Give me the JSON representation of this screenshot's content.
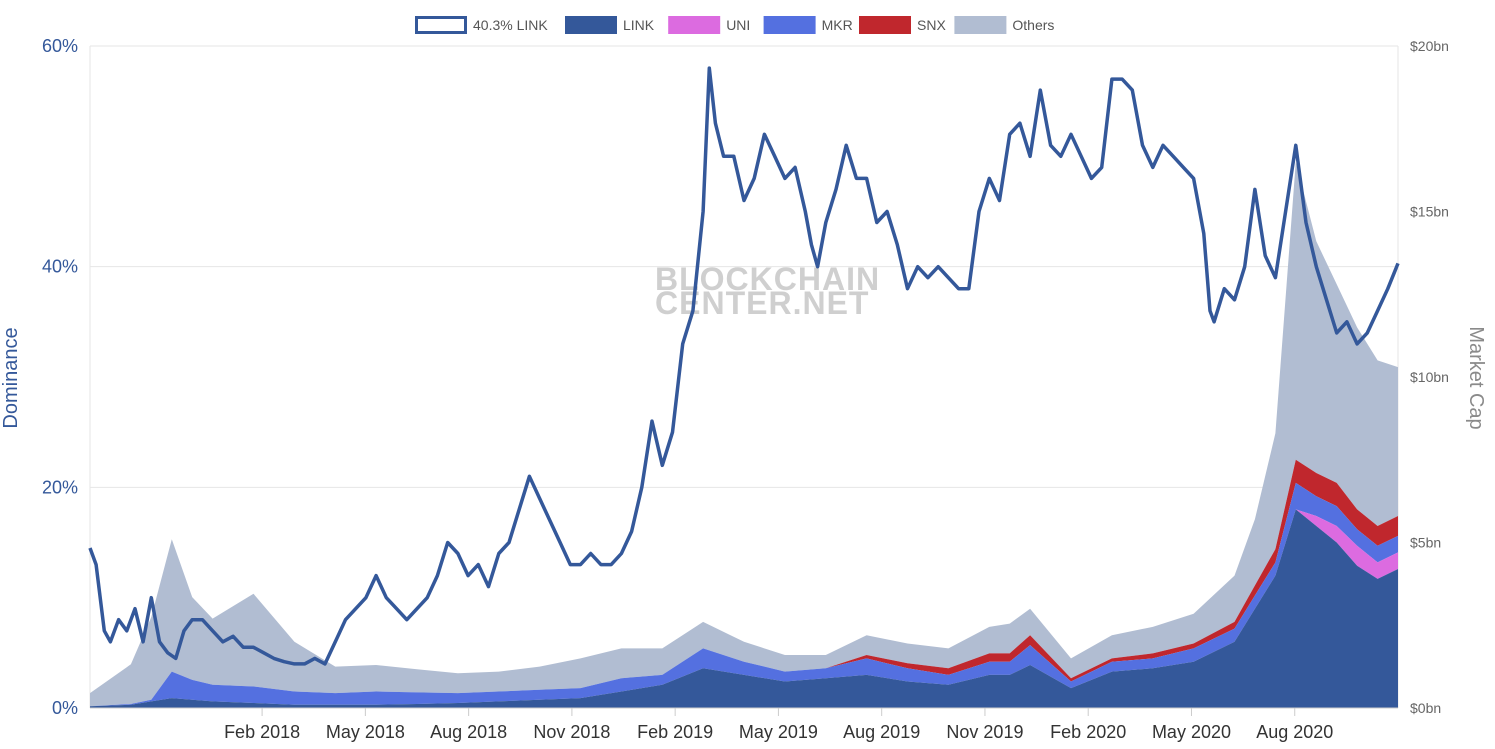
{
  "chart_data": {
    "type": "area",
    "watermark": [
      "BLOCKCHAIN",
      "CENTER.NET"
    ],
    "y_left": {
      "label": "Dominance",
      "ticks": [
        "0%",
        "20%",
        "40%",
        "60%"
      ],
      "range": [
        0,
        60
      ]
    },
    "y_right": {
      "label": "Market Cap",
      "ticks": [
        "$0bn",
        "$5bn",
        "$10bn",
        "$15bn",
        "$20bn"
      ],
      "range": [
        0,
        20
      ]
    },
    "x_ticks": [
      "Feb 2018",
      "May 2018",
      "Aug 2018",
      "Nov 2018",
      "Feb 2019",
      "May 2019",
      "Aug 2019",
      "Nov 2019",
      "Feb 2020",
      "May 2020",
      "Aug 2020"
    ],
    "x_range_months": [
      "2017-10",
      "2020-11"
    ],
    "legend": [
      {
        "name": "40.3% LINK",
        "color": "#34589a",
        "style": "outline"
      },
      {
        "name": "LINK",
        "color": "#34589a",
        "style": "fill"
      },
      {
        "name": "UNI",
        "color": "#dc6be0",
        "style": "fill"
      },
      {
        "name": "MKR",
        "color": "#5470e0",
        "style": "fill"
      },
      {
        "name": "SNX",
        "color": "#c0272d",
        "style": "fill"
      },
      {
        "name": "Others",
        "color": "#b1bdd2",
        "style": "fill"
      }
    ],
    "x_month_index": [
      0,
      1,
      2,
      3,
      4,
      5,
      6,
      7,
      8,
      9,
      10,
      11,
      12,
      13,
      14,
      15,
      16,
      17,
      18,
      19,
      20,
      21,
      22,
      23,
      24,
      25,
      26,
      27,
      28,
      29,
      30,
      31,
      32,
      33,
      34,
      35,
      36,
      37,
      38
    ],
    "dominance_line": {
      "name": "40.3% LINK",
      "points": [
        [
          0,
          14.5
        ],
        [
          0.3,
          13
        ],
        [
          0.7,
          7
        ],
        [
          1,
          6
        ],
        [
          1.4,
          8
        ],
        [
          1.8,
          7
        ],
        [
          2.2,
          9
        ],
        [
          2.6,
          6
        ],
        [
          3,
          10
        ],
        [
          3.4,
          6
        ],
        [
          3.8,
          5
        ],
        [
          4.2,
          4.5
        ],
        [
          4.6,
          7
        ],
        [
          5,
          8
        ],
        [
          5.5,
          8
        ],
        [
          6,
          7
        ],
        [
          6.5,
          6
        ],
        [
          7,
          6.5
        ],
        [
          7.5,
          5.5
        ],
        [
          8,
          5.5
        ],
        [
          8.5,
          5
        ],
        [
          9,
          4.5
        ],
        [
          9.5,
          4.2
        ],
        [
          10,
          4
        ],
        [
          10.5,
          4
        ],
        [
          11,
          4.5
        ],
        [
          11.5,
          4
        ],
        [
          12,
          6
        ],
        [
          12.5,
          8
        ],
        [
          13,
          9
        ],
        [
          13.5,
          10
        ],
        [
          14,
          12
        ],
        [
          14.5,
          10
        ],
        [
          15,
          9
        ],
        [
          15.5,
          8
        ],
        [
          16,
          9
        ],
        [
          16.5,
          10
        ],
        [
          17,
          12
        ],
        [
          17.5,
          15
        ],
        [
          18,
          14
        ],
        [
          18.5,
          12
        ],
        [
          19,
          13
        ],
        [
          19.5,
          11
        ],
        [
          20,
          14
        ],
        [
          20.5,
          15
        ],
        [
          21,
          18
        ],
        [
          21.5,
          21
        ],
        [
          22,
          19
        ],
        [
          22.5,
          17
        ],
        [
          23,
          15
        ],
        [
          23.5,
          13
        ],
        [
          24,
          13
        ],
        [
          24.5,
          14
        ],
        [
          25,
          13
        ],
        [
          25.5,
          13
        ],
        [
          26,
          14
        ],
        [
          26.5,
          16
        ],
        [
          27,
          20
        ],
        [
          27.5,
          26
        ],
        [
          28,
          22
        ],
        [
          28.5,
          25
        ],
        [
          29,
          33
        ],
        [
          29.5,
          36
        ],
        [
          30,
          45
        ],
        [
          30.3,
          58
        ],
        [
          30.6,
          53
        ],
        [
          31,
          50
        ],
        [
          31.5,
          50
        ],
        [
          32,
          46
        ],
        [
          32.5,
          48
        ],
        [
          33,
          52
        ],
        [
          33.5,
          50
        ],
        [
          34,
          48
        ],
        [
          34.5,
          49
        ],
        [
          35,
          45
        ],
        [
          35.3,
          42
        ],
        [
          35.6,
          40
        ],
        [
          36,
          44
        ],
        [
          36.5,
          47
        ],
        [
          37,
          51
        ],
        [
          37.5,
          48
        ],
        [
          38,
          48
        ],
        [
          38.5,
          44
        ],
        [
          39,
          45
        ],
        [
          39.5,
          42
        ],
        [
          40,
          38
        ],
        [
          40.5,
          40
        ],
        [
          41,
          39
        ],
        [
          41.5,
          40
        ],
        [
          42,
          39
        ],
        [
          42.5,
          38
        ],
        [
          43,
          38
        ],
        [
          43.5,
          45
        ],
        [
          44,
          48
        ],
        [
          44.5,
          46
        ],
        [
          45,
          52
        ],
        [
          45.5,
          53
        ],
        [
          46,
          50
        ],
        [
          46.5,
          56
        ],
        [
          47,
          51
        ],
        [
          47.5,
          50
        ],
        [
          48,
          52
        ],
        [
          48.5,
          50
        ],
        [
          49,
          48
        ],
        [
          49.5,
          49
        ],
        [
          50,
          57
        ],
        [
          50.5,
          57
        ],
        [
          51,
          56
        ],
        [
          51.5,
          51
        ],
        [
          52,
          49
        ],
        [
          52.5,
          51
        ],
        [
          53,
          50
        ],
        [
          53.5,
          49
        ],
        [
          54,
          48
        ],
        [
          54.5,
          43
        ],
        [
          54.8,
          36
        ],
        [
          55,
          35
        ],
        [
          55.5,
          38
        ],
        [
          56,
          37
        ],
        [
          56.5,
          40
        ],
        [
          57,
          47
        ],
        [
          57.5,
          41
        ],
        [
          58,
          39
        ],
        [
          58.5,
          45
        ],
        [
          59,
          51
        ],
        [
          59.5,
          44
        ],
        [
          60,
          40
        ],
        [
          60.5,
          37
        ],
        [
          61,
          34
        ],
        [
          61.5,
          35
        ],
        [
          62,
          33
        ],
        [
          62.5,
          34
        ],
        [
          63,
          36
        ],
        [
          63.5,
          38
        ],
        [
          64,
          40.3
        ]
      ]
    },
    "market_cap_bn": {
      "note": "stacked areas in $bn, sampled by month index",
      "x": [
        0,
        2,
        3,
        4,
        5,
        6,
        8,
        10,
        12,
        14,
        16,
        18,
        20,
        22,
        24,
        26,
        28,
        30,
        32,
        34,
        36,
        38,
        40,
        42,
        44,
        45,
        46,
        48,
        50,
        52,
        54,
        56,
        57,
        58,
        59,
        60,
        61,
        62,
        63,
        64
      ],
      "LINK": [
        0.05,
        0.1,
        0.2,
        0.3,
        0.25,
        0.2,
        0.15,
        0.1,
        0.1,
        0.1,
        0.12,
        0.15,
        0.2,
        0.25,
        0.3,
        0.5,
        0.7,
        1.2,
        1.0,
        0.8,
        0.9,
        1.0,
        0.8,
        0.7,
        1.0,
        1.0,
        1.3,
        0.6,
        1.1,
        1.2,
        1.4,
        2.0,
        3.0,
        4.0,
        6.0,
        5.5,
        5.0,
        4.3,
        3.9,
        4.2
      ],
      "UNI": [
        0,
        0,
        0,
        0,
        0,
        0,
        0,
        0,
        0,
        0,
        0,
        0,
        0,
        0,
        0,
        0,
        0,
        0,
        0,
        0,
        0,
        0,
        0,
        0,
        0,
        0,
        0,
        0,
        0,
        0,
        0,
        0,
        0,
        0,
        0,
        0.3,
        0.5,
        0.6,
        0.5,
        0.5
      ],
      "MKR": [
        0,
        0.02,
        0.05,
        0.8,
        0.6,
        0.5,
        0.5,
        0.4,
        0.35,
        0.4,
        0.35,
        0.3,
        0.3,
        0.3,
        0.3,
        0.4,
        0.3,
        0.6,
        0.4,
        0.3,
        0.3,
        0.5,
        0.4,
        0.3,
        0.4,
        0.4,
        0.6,
        0.2,
        0.3,
        0.3,
        0.4,
        0.4,
        0.4,
        0.4,
        0.8,
        0.6,
        0.6,
        0.5,
        0.5,
        0.5
      ],
      "SNX": [
        0,
        0,
        0,
        0,
        0,
        0,
        0,
        0,
        0,
        0,
        0,
        0,
        0,
        0,
        0,
        0,
        0,
        0,
        0,
        0,
        0,
        0.1,
        0.15,
        0.2,
        0.25,
        0.25,
        0.3,
        0.1,
        0.1,
        0.15,
        0.15,
        0.2,
        0.3,
        0.4,
        0.7,
        0.7,
        0.7,
        0.6,
        0.6,
        0.6
      ],
      "Others": [
        0.4,
        1.2,
        2.5,
        4.0,
        2.5,
        2.0,
        2.8,
        1.5,
        0.8,
        0.8,
        0.7,
        0.6,
        0.6,
        0.7,
        0.9,
        0.9,
        0.8,
        0.8,
        0.6,
        0.5,
        0.4,
        0.6,
        0.6,
        0.6,
        0.8,
        0.9,
        0.8,
        0.6,
        0.7,
        0.8,
        0.9,
        1.4,
        2.0,
        3.5,
        9.0,
        7.0,
        6.0,
        5.5,
        5.0,
        4.5
      ]
    }
  }
}
